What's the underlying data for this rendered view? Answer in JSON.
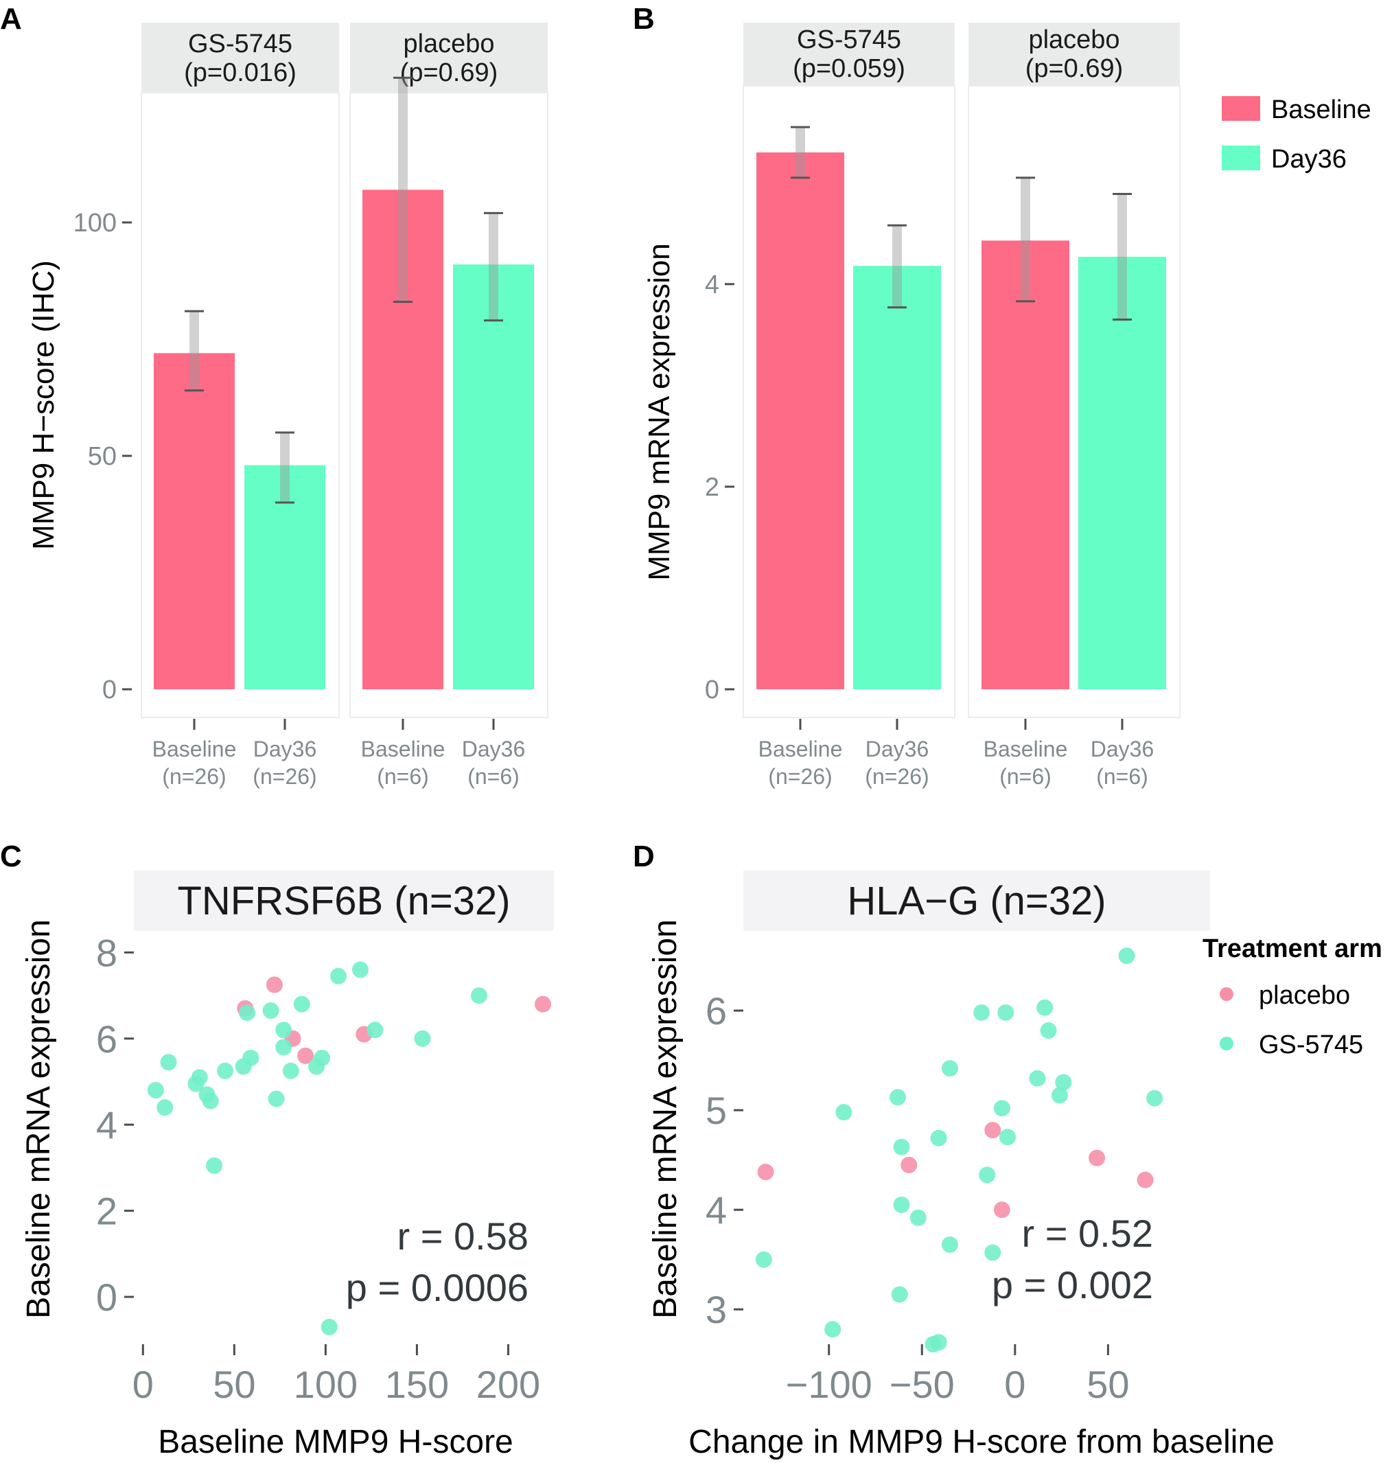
{
  "colors": {
    "baseline": "#fe6b86",
    "day36": "#64fec6",
    "placebo_point": "#f590a8",
    "gs5745_point": "#72f0c8"
  },
  "chart_data": [
    {
      "panel": "A",
      "type": "bar",
      "ylabel": "MMP9 H−score (IHC)",
      "ylim": [
        0,
        130
      ],
      "yticks": [
        "0",
        "50",
        "100"
      ],
      "facets": [
        {
          "title_line1": "GS-5745",
          "title_line2": "(p=0.016)",
          "bars": [
            {
              "group": "Baseline",
              "label_line1": "Baseline",
              "label_line2": "(n=26)",
              "value": 72,
              "err_low": 64,
              "err_high": 81
            },
            {
              "group": "Day36",
              "label_line1": "Day36",
              "label_line2": "(n=26)",
              "value": 48,
              "err_low": 40,
              "err_high": 55
            }
          ]
        },
        {
          "title_line1": "placebo",
          "title_line2": "(p=0.69)",
          "bars": [
            {
              "group": "Baseline",
              "label_line1": "Baseline",
              "label_line2": "(n=6)",
              "value": 107,
              "err_low": 83,
              "err_high": 131
            },
            {
              "group": "Day36",
              "label_line1": "Day36",
              "label_line2": "(n=6)",
              "value": 91,
              "err_low": 79,
              "err_high": 102
            }
          ]
        }
      ]
    },
    {
      "panel": "B",
      "type": "bar",
      "ylabel": "MMP9 mRNA expression",
      "ylim": [
        0,
        5.7
      ],
      "yticks": [
        "0",
        "2",
        "4"
      ],
      "legend": [
        "Baseline",
        "Day36"
      ],
      "facets": [
        {
          "title_line1": "GS-5745",
          "title_line2": "(p=0.059)",
          "bars": [
            {
              "group": "Baseline",
              "label_line1": "Baseline",
              "label_line2": "(n=26)",
              "value": 5.3,
              "err_low": 5.05,
              "err_high": 5.55
            },
            {
              "group": "Day36",
              "label_line1": "Day36",
              "label_line2": "(n=26)",
              "value": 4.18,
              "err_low": 3.77,
              "err_high": 4.58
            }
          ]
        },
        {
          "title_line1": "placebo",
          "title_line2": "(p=0.69)",
          "bars": [
            {
              "group": "Baseline",
              "label_line1": "Baseline",
              "label_line2": "(n=6)",
              "value": 4.43,
              "err_low": 3.83,
              "err_high": 5.05
            },
            {
              "group": "Day36",
              "label_line1": "Day36",
              "label_line2": "(n=6)",
              "value": 4.27,
              "err_low": 3.65,
              "err_high": 4.89
            }
          ]
        }
      ]
    },
    {
      "panel": "C",
      "type": "scatter",
      "title": "TNFRSF6B (n=32)",
      "xlabel": "Baseline MMP9 H-score",
      "ylabel": "Baseline mRNA expression",
      "xlim": [
        -5,
        225
      ],
      "ylim": [
        -1.1,
        8.5
      ],
      "xticks": [
        "0",
        "50",
        "100",
        "150",
        "200"
      ],
      "yticks": [
        "0",
        "2",
        "4",
        "6",
        "8"
      ],
      "stat_r": "r = 0.58",
      "stat_p": "p = 0.0006",
      "series": [
        {
          "name": "placebo",
          "points": [
            [
              72,
              7.25
            ],
            [
              56,
              6.7
            ],
            [
              82,
              6.0
            ],
            [
              89,
              5.6
            ],
            [
              121,
              6.1
            ],
            [
              219,
              6.8
            ]
          ]
        },
        {
          "name": "GS-5745",
          "points": [
            [
              7,
              4.8
            ],
            [
              12,
              4.4
            ],
            [
              14,
              5.45
            ],
            [
              29,
              4.95
            ],
            [
              31,
              5.1
            ],
            [
              35,
              4.7
            ],
            [
              37,
              4.55
            ],
            [
              39,
              3.05
            ],
            [
              45,
              5.25
            ],
            [
              55,
              5.35
            ],
            [
              57,
              6.6
            ],
            [
              59,
              5.55
            ],
            [
              70,
              6.65
            ],
            [
              73,
              4.6
            ],
            [
              77,
              6.2
            ],
            [
              77,
              5.8
            ],
            [
              81,
              5.25
            ],
            [
              87,
              6.8
            ],
            [
              95,
              5.35
            ],
            [
              98,
              5.55
            ],
            [
              102,
              -0.7
            ],
            [
              107,
              7.45
            ],
            [
              119,
              7.6
            ],
            [
              127,
              6.2
            ],
            [
              153,
              6.0
            ],
            [
              184,
              7.0
            ]
          ]
        }
      ]
    },
    {
      "panel": "D",
      "type": "scatter",
      "title": "HLA−G (n=32)",
      "xlabel": "Change in MMP9 H-score from baseline",
      "ylabel": "Baseline mRNA expression",
      "xlim": [
        -146,
        79
      ],
      "ylim": [
        2.65,
        6.8
      ],
      "xticks": [
        "−100",
        "−50",
        "0",
        "50"
      ],
      "yticks": [
        "3",
        "4",
        "5",
        "6"
      ],
      "stat_r": "r = 0.52",
      "stat_p": "p = 0.002",
      "legend_title": "Treatment arm",
      "legend": [
        "placebo",
        "GS-5745"
      ],
      "series": [
        {
          "name": "placebo",
          "points": [
            [
              -134,
              4.38
            ],
            [
              -57,
              4.45
            ],
            [
              -12,
              4.8
            ],
            [
              -7,
              4.0
            ],
            [
              44,
              4.52
            ],
            [
              70,
              4.3
            ]
          ]
        },
        {
          "name": "GS-5745",
          "points": [
            [
              -135,
              3.5
            ],
            [
              -98,
              2.8
            ],
            [
              -92,
              4.98
            ],
            [
              -63,
              5.13
            ],
            [
              -61,
              4.63
            ],
            [
              -61,
              4.05
            ],
            [
              -62,
              3.15
            ],
            [
              -52,
              3.92
            ],
            [
              -44,
              2.65
            ],
            [
              -41,
              2.67
            ],
            [
              -41,
              4.72
            ],
            [
              -35,
              5.42
            ],
            [
              -35,
              3.65
            ],
            [
              -18,
              5.98
            ],
            [
              -15,
              4.35
            ],
            [
              -12,
              3.57
            ],
            [
              -7,
              5.02
            ],
            [
              -5,
              5.98
            ],
            [
              -4,
              4.73
            ],
            [
              12,
              5.32
            ],
            [
              16,
              6.03
            ],
            [
              18,
              5.8
            ],
            [
              24,
              5.15
            ],
            [
              26,
              5.28
            ],
            [
              60,
              6.55
            ],
            [
              75,
              5.12
            ]
          ]
        }
      ]
    }
  ]
}
